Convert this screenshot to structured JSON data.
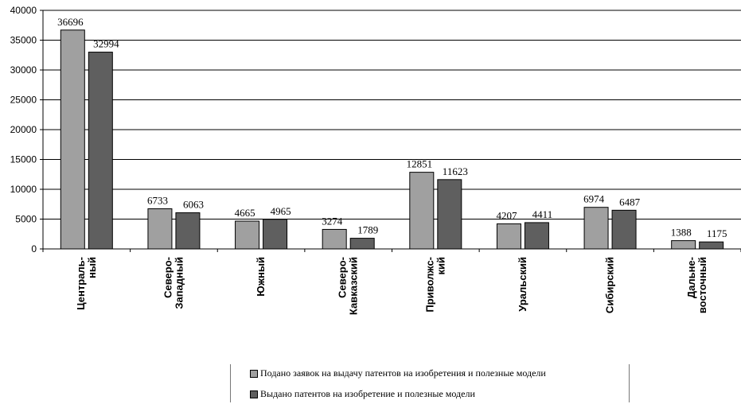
{
  "chart_data": {
    "type": "bar",
    "categories": [
      [
        "Централь-",
        "ный"
      ],
      [
        "Северо-",
        "Западный"
      ],
      [
        "Южный"
      ],
      [
        "Северо-",
        "Кавказский"
      ],
      [
        "Приволжс-",
        "кий"
      ],
      [
        "Уральский"
      ],
      [
        "Сибирский"
      ],
      [
        "Дальне-",
        "восточный"
      ]
    ],
    "series": [
      {
        "name": "Подано заявок на выдачу патентов на изобретения и полезные модели",
        "values": [
          36696,
          6733,
          4665,
          3274,
          12851,
          4207,
          6974,
          1388
        ],
        "color": "#a0a0a0"
      },
      {
        "name": "Выдано патентов на изобретение и полезные модели",
        "values": [
          32994,
          6063,
          4965,
          1789,
          11623,
          4411,
          6487,
          1175
        ],
        "color": "#5f5f5f"
      }
    ],
    "ylim": [
      0,
      40000
    ],
    "yticks": [
      0,
      5000,
      10000,
      15000,
      20000,
      25000,
      30000,
      35000,
      40000
    ],
    "grid": true,
    "legend_position": "bottom"
  }
}
